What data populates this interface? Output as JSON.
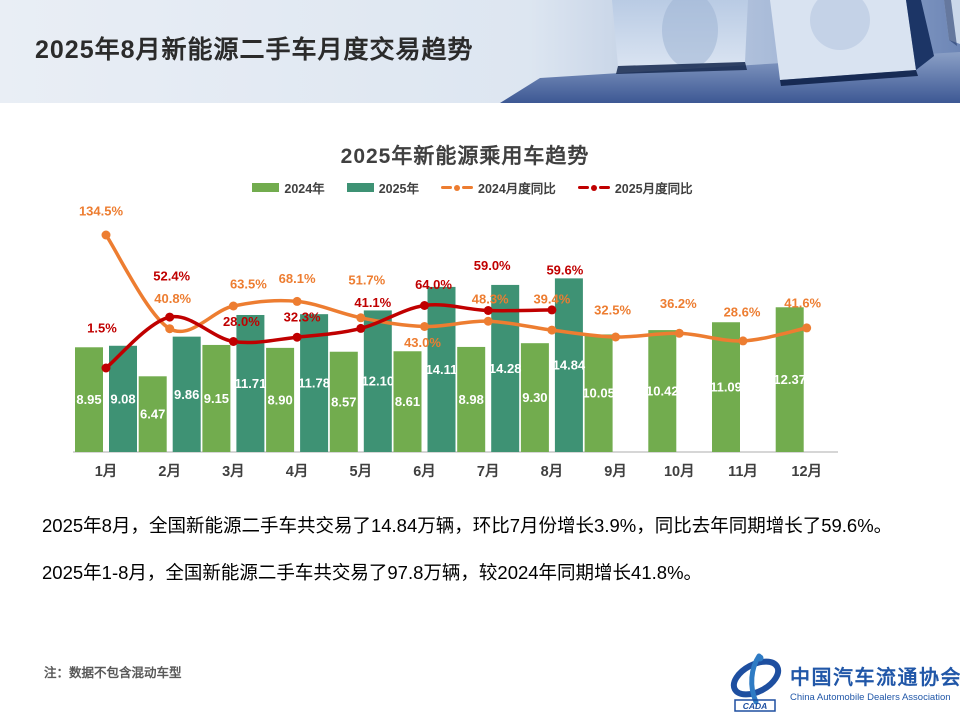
{
  "header": {
    "title": "2025年8月新能源二手车月度交易趋势"
  },
  "chart": {
    "title": "2025年新能源乘用车趋势",
    "legend": [
      {
        "label": "2024年"
      },
      {
        "label": "2025年"
      },
      {
        "label": "2024月度同比"
      },
      {
        "label": "2025月度同比"
      }
    ]
  },
  "chart_data": {
    "type": "bar",
    "title": "2025年新能源乘用车趋势",
    "categories": [
      "1月",
      "2月",
      "3月",
      "4月",
      "5月",
      "6月",
      "7月",
      "8月",
      "9月",
      "10月",
      "11月",
      "12月"
    ],
    "unit_bars": "万辆",
    "unit_lines": "%",
    "legend_position": "top",
    "grid": false,
    "series": [
      {
        "name": "2024年",
        "type": "bar",
        "color": "#72AC4E",
        "values": [
          8.95,
          6.47,
          9.15,
          8.9,
          8.57,
          8.61,
          8.98,
          9.3,
          10.05,
          10.42,
          11.09,
          12.37
        ]
      },
      {
        "name": "2025年",
        "type": "bar",
        "color": "#3E9274",
        "values": [
          9.08,
          9.86,
          11.71,
          11.78,
          12.1,
          14.11,
          14.28,
          14.84
        ]
      },
      {
        "name": "2024月度同比",
        "type": "line",
        "color": "#ED7D31",
        "values": [
          134.5,
          40.8,
          63.5,
          68.1,
          51.7,
          43.0,
          48.3,
          39.4,
          32.5,
          36.2,
          28.6,
          41.6
        ]
      },
      {
        "name": "2025月度同比",
        "type": "line",
        "color": "#C00000",
        "values": [
          1.5,
          52.4,
          28.0,
          32.3,
          41.1,
          64.0,
          59.0,
          59.6
        ]
      }
    ]
  },
  "body": {
    "paragraph1": "2025年8月，全国新能源二手车共交易了14.84万辆，环比7月份增长3.9%，同比去年同期增长了59.6%。",
    "paragraph2": "2025年1-8月，全国新能源二手车共交易了97.8万辆，较2024年同期增长41.8%。"
  },
  "footer": {
    "note": "注：数据不包含混动车型",
    "logo": {
      "org_cn": "中国汽车流通协会",
      "org_en": "China Automobile Dealers Association",
      "logo_text": "CADA",
      "brand_color": "#2157A8"
    }
  }
}
